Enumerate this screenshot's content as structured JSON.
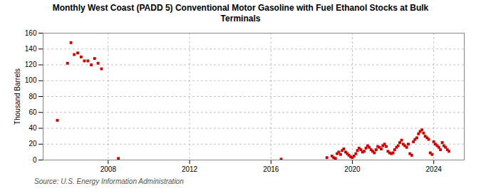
{
  "chart_data": {
    "type": "scatter",
    "title": "Monthly West Coast (PADD 5) Conventional Motor Gasoline with Fuel Ethanol Stocks at Bulk\nTerminals",
    "ylabel": "Thousand Barrels",
    "source": "Source: U.S. Energy Information Administration",
    "color": "#cc0000",
    "marker": "square",
    "grid": true,
    "xlim": [
      2004.8,
      2025.5
    ],
    "ylim": [
      0,
      160
    ],
    "xticks": [
      2008,
      2012,
      2016,
      2020,
      2024
    ],
    "yticks": [
      0,
      20,
      40,
      60,
      80,
      100,
      120,
      140,
      160
    ],
    "x": [
      2005.5,
      2006.0,
      2006.17,
      2006.33,
      2006.5,
      2006.67,
      2006.83,
      2007.0,
      2007.17,
      2007.33,
      2007.5,
      2007.67,
      2008.5,
      2016.5,
      2018.75,
      2019.0,
      2019.08,
      2019.17,
      2019.25,
      2019.33,
      2019.42,
      2019.5,
      2019.58,
      2019.67,
      2019.75,
      2019.83,
      2019.92,
      2020.0,
      2020.08,
      2020.17,
      2020.25,
      2020.33,
      2020.42,
      2020.5,
      2020.58,
      2020.67,
      2020.75,
      2020.83,
      2020.92,
      2021.0,
      2021.08,
      2021.17,
      2021.25,
      2021.33,
      2021.42,
      2021.5,
      2021.58,
      2021.67,
      2021.75,
      2021.83,
      2021.92,
      2022.0,
      2022.08,
      2022.17,
      2022.25,
      2022.33,
      2022.42,
      2022.5,
      2022.58,
      2022.67,
      2022.75,
      2022.83,
      2022.92,
      2023.0,
      2023.08,
      2023.17,
      2023.25,
      2023.33,
      2023.42,
      2023.5,
      2023.58,
      2023.67,
      2023.75,
      2023.83,
      2023.92,
      2024.0,
      2024.08,
      2024.17,
      2024.25,
      2024.33,
      2024.42,
      2024.5,
      2024.58,
      2024.67,
      2024.75
    ],
    "values": [
      50,
      122,
      148,
      133,
      135,
      130,
      125,
      125,
      120,
      128,
      122,
      115,
      2,
      1,
      3,
      5,
      3,
      2,
      8,
      10,
      7,
      12,
      14,
      10,
      8,
      6,
      4,
      3,
      5,
      8,
      12,
      15,
      13,
      10,
      11,
      15,
      18,
      16,
      13,
      11,
      9,
      13,
      17,
      16,
      14,
      18,
      20,
      17,
      11,
      9,
      8,
      9,
      13,
      16,
      18,
      22,
      25,
      20,
      18,
      16,
      20,
      8,
      6,
      23,
      26,
      28,
      33,
      36,
      38,
      34,
      30,
      28,
      26,
      9,
      7,
      23,
      20,
      18,
      16,
      13,
      22,
      18,
      16,
      13,
      11
    ]
  }
}
